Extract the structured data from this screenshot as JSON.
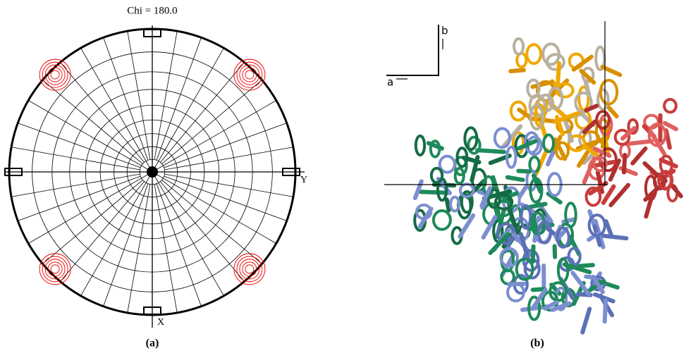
{
  "panel_a": {
    "title": "Chi = 180.0",
    "axis_y": "Y",
    "axis_x": "X",
    "caption": "(a)"
  },
  "panel_b": {
    "axis_a": "a",
    "axis_b": "b",
    "caption": "(b)"
  }
}
